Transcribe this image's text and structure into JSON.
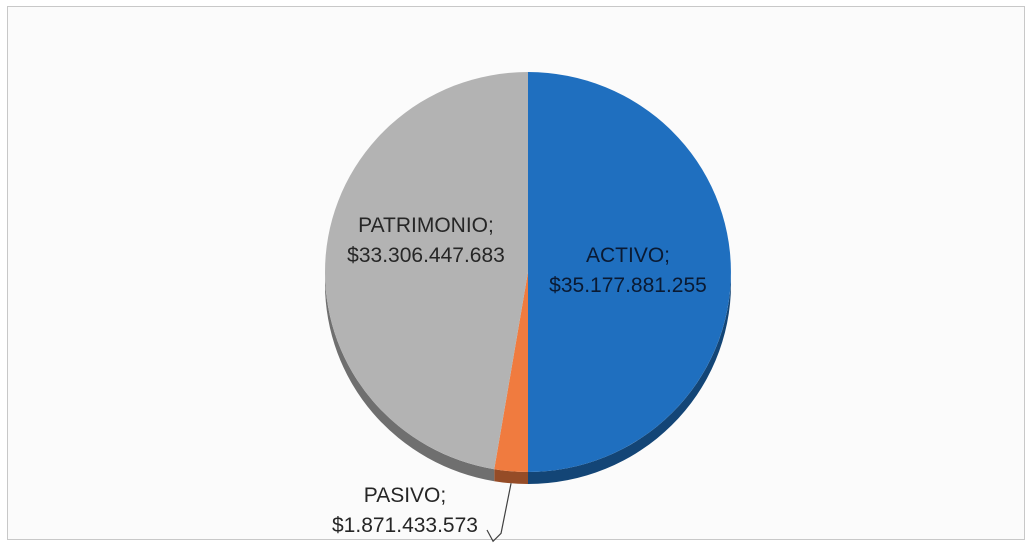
{
  "chart_data": {
    "type": "pie",
    "slices": [
      {
        "label": "ACTIVO",
        "value": 35177881255,
        "value_text": "$35.177.881.255",
        "color": "#1f6fbf"
      },
      {
        "label": "PASIVO",
        "value": 1871433573,
        "value_text": "$1.871.433.573",
        "color": "#f07b3f"
      },
      {
        "label": "PATRIMONIO",
        "value": 33306447683,
        "value_text": "$33.306.447.683",
        "color": "#b3b3b3"
      }
    ],
    "title": "",
    "legend": "none",
    "label_separator": ";"
  }
}
